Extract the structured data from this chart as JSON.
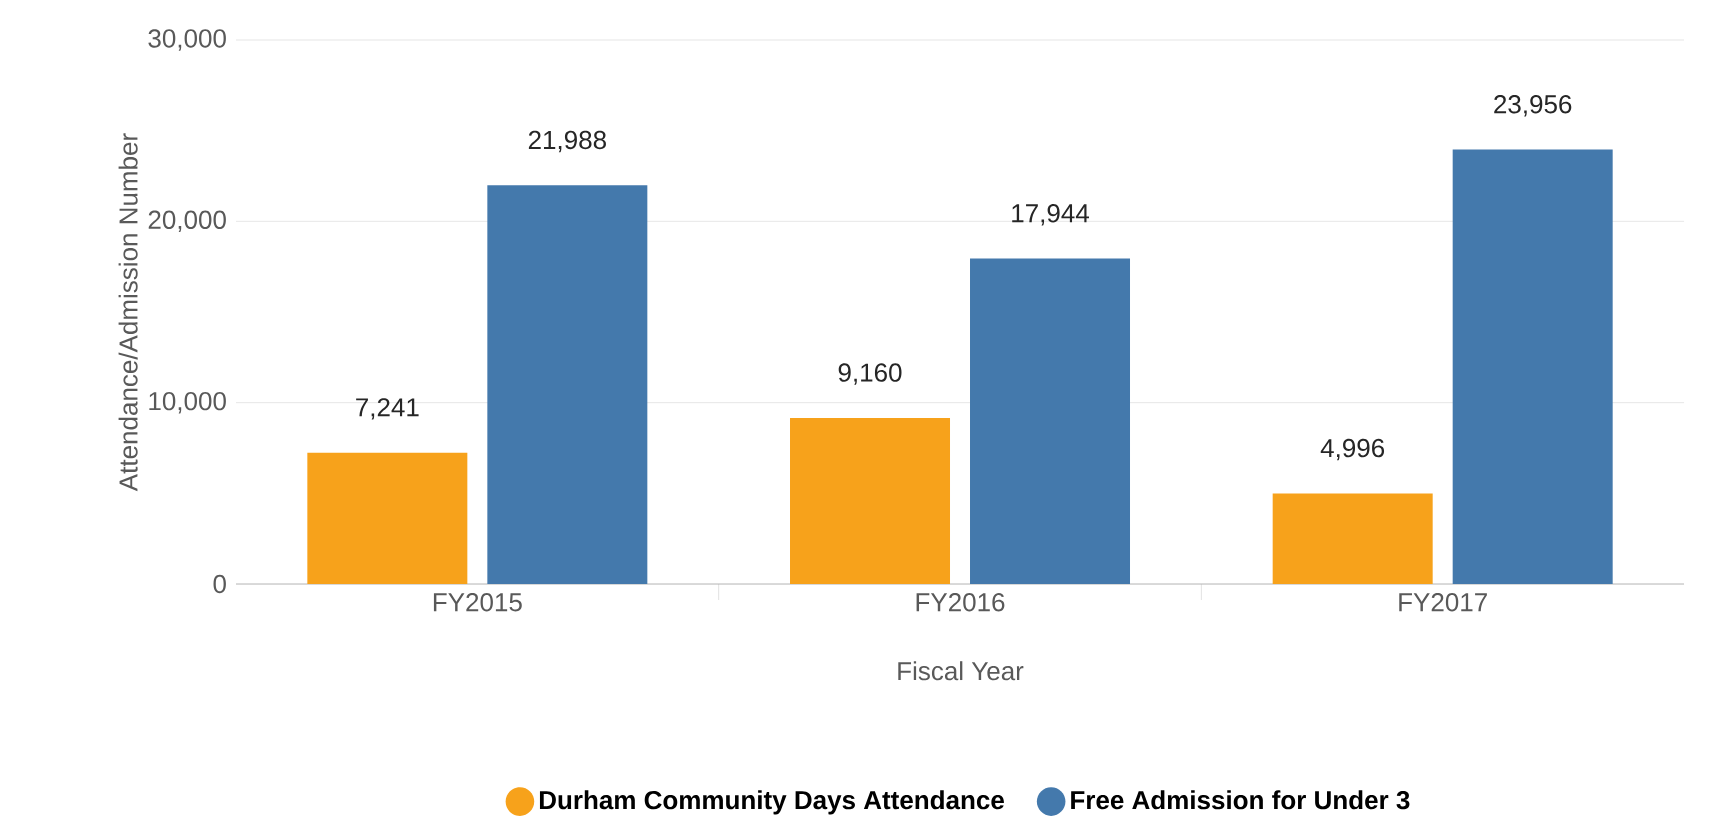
{
  "chart_data": {
    "type": "bar",
    "xlabel": "Fiscal Year",
    "ylabel": "Attendance/Admission Number",
    "categories": [
      "FY2015",
      "FY2016",
      "FY2017"
    ],
    "series": [
      {
        "name": "Durham Community Days Attendance",
        "color": "#f7a21b",
        "values": [
          7241,
          9160,
          4996
        ],
        "value_labels": [
          "7,241",
          "9,160",
          "4,996"
        ]
      },
      {
        "name": "Free Admission for Under 3",
        "color": "#4479ac",
        "values": [
          21988,
          17944,
          23956
        ],
        "value_labels": [
          "21,988",
          "17,944",
          "23,956"
        ]
      }
    ],
    "ylim": [
      0,
      30000
    ],
    "yticks": [
      0,
      {
        "value": 10000,
        "label": "10,000"
      },
      {
        "value": 20000,
        "label": "20,000"
      },
      {
        "value": 30000,
        "label": "30,000"
      }
    ],
    "grid": "y",
    "legend": "bottom"
  }
}
